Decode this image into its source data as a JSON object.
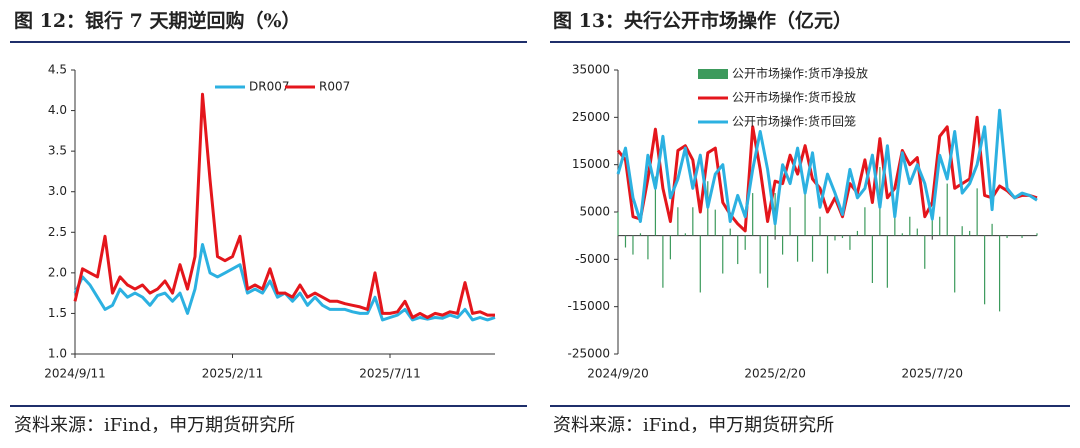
{
  "chart_data": [
    {
      "type": "line",
      "title": "图 12：银行 7 天期逆回购（%）",
      "source": "资料来源：iFind，申万期货研究所",
      "categories": [
        "2024/9/11",
        null,
        null,
        null,
        null,
        null,
        null,
        null,
        null,
        null,
        null,
        null,
        null,
        null,
        null,
        null,
        null,
        null,
        null,
        null,
        null,
        "2025/2/11",
        null,
        null,
        null,
        null,
        null,
        null,
        null,
        null,
        null,
        null,
        null,
        null,
        null,
        null,
        null,
        null,
        null,
        null,
        null,
        null,
        "2025/7/11",
        null,
        null,
        null,
        null,
        null,
        null,
        null,
        null,
        null,
        null,
        null,
        null,
        null,
        null
      ],
      "series": [
        {
          "name": "DR007",
          "color": "#2cb1e1",
          "values": [
            1.75,
            1.95,
            1.85,
            1.7,
            1.55,
            1.6,
            1.8,
            1.7,
            1.75,
            1.7,
            1.6,
            1.72,
            1.75,
            1.65,
            1.75,
            1.5,
            1.8,
            2.35,
            2.0,
            1.95,
            2.0,
            2.05,
            2.1,
            1.75,
            1.8,
            1.75,
            1.9,
            1.7,
            1.75,
            1.65,
            1.75,
            1.6,
            1.7,
            1.6,
            1.55,
            1.55,
            1.55,
            1.52,
            1.5,
            1.5,
            1.7,
            1.42,
            1.45,
            1.48,
            1.55,
            1.42,
            1.45,
            1.43,
            1.45,
            1.44,
            1.48,
            1.45,
            1.55,
            1.42,
            1.45,
            1.42,
            1.45
          ]
        },
        {
          "name": "R007",
          "color": "#e4161c",
          "values": [
            1.65,
            2.05,
            2.0,
            1.95,
            2.45,
            1.75,
            1.95,
            1.85,
            1.8,
            1.85,
            1.75,
            1.8,
            1.9,
            1.75,
            2.1,
            1.8,
            2.2,
            4.2,
            3.15,
            2.2,
            2.15,
            2.2,
            2.45,
            1.8,
            1.85,
            1.8,
            2.05,
            1.75,
            1.75,
            1.7,
            1.85,
            1.7,
            1.75,
            1.7,
            1.65,
            1.65,
            1.62,
            1.6,
            1.58,
            1.55,
            2.0,
            1.5,
            1.5,
            1.52,
            1.65,
            1.45,
            1.5,
            1.45,
            1.5,
            1.48,
            1.52,
            1.5,
            1.88,
            1.5,
            1.52,
            1.48,
            1.48
          ]
        }
      ],
      "ylim": [
        1.0,
        4.5
      ],
      "yticks": [
        {
          "value": 1.0,
          "label": "1.0"
        },
        1.5,
        {
          "value": 2.0,
          "label": "2.0"
        },
        2.5,
        {
          "value": 3.0,
          "label": "3.0"
        },
        3.5,
        {
          "value": 4.0,
          "label": "4.0"
        },
        4.5
      ],
      "grid": false,
      "legend": "upper center"
    },
    {
      "type": "combo",
      "title": "图 13：央行公开市场操作（亿元）",
      "source": "资料来源：iFind，申万期货研究所",
      "categories": [
        "2024/9/20",
        null,
        null,
        null,
        null,
        null,
        null,
        null,
        null,
        null,
        null,
        null,
        null,
        null,
        null,
        null,
        null,
        null,
        null,
        null,
        null,
        "2025/2/20",
        null,
        null,
        null,
        null,
        null,
        null,
        null,
        null,
        null,
        null,
        null,
        null,
        null,
        null,
        null,
        null,
        null,
        null,
        null,
        null,
        "2025/7/20",
        null,
        null,
        null,
        null,
        null,
        null,
        null,
        null,
        null,
        null,
        null,
        null,
        null,
        null
      ],
      "series": [
        {
          "name": "公开市场操作:货币净投放",
          "type": "bar",
          "color": "#3c9a5c",
          "values": [
            5000,
            -2500,
            -4000,
            500,
            -5000,
            12500,
            -11000,
            -5000,
            6000,
            500,
            6000,
            -12000,
            11500,
            5500,
            -8000,
            1500,
            -6000,
            -3000,
            9000,
            -8000,
            -11000,
            9000,
            -4000,
            6000,
            -5500,
            10000,
            -5500,
            4000,
            -8000,
            -1000,
            -500,
            -3000,
            1000,
            6000,
            -10000,
            14500,
            -11000,
            6000,
            500,
            4000,
            1500,
            -7000,
            3500,
            4000,
            11000,
            -12000,
            2000,
            1000,
            10000,
            -14500,
            2500,
            -16000,
            -500,
            0,
            -500,
            0,
            500
          ]
        },
        {
          "name": "公开市场操作:货币投放",
          "type": "line",
          "color": "#e4161c",
          "values": [
            18000,
            16000,
            4000,
            3500,
            12000,
            22500,
            10000,
            3000,
            18000,
            19000,
            16000,
            5000,
            17500,
            18500,
            7000,
            4500,
            2500,
            1000,
            23000,
            14000,
            3000,
            11500,
            11000,
            17000,
            13000,
            19000,
            12000,
            10000,
            5000,
            8000,
            4000,
            11000,
            9000,
            16000,
            7000,
            20500,
            8000,
            10000,
            18000,
            15000,
            16500,
            4000,
            7000,
            21000,
            23000,
            10000,
            11000,
            12000,
            25000,
            8500,
            8000,
            10500,
            9500,
            8000,
            8500,
            8500,
            8000
          ]
        },
        {
          "name": "公开市场操作:货币回笼",
          "type": "line",
          "color": "#2cb1e1",
          "values": [
            13000,
            18500,
            8000,
            3000,
            17000,
            10000,
            21000,
            8000,
            12000,
            18500,
            10000,
            17000,
            6000,
            13000,
            15000,
            3000,
            8500,
            4000,
            14000,
            22000,
            14000,
            2500,
            15000,
            11000,
            18500,
            9000,
            17500,
            6000,
            13000,
            9000,
            4500,
            14000,
            8000,
            10000,
            17000,
            6000,
            19000,
            4000,
            17500,
            11000,
            15000,
            11000,
            3500,
            17000,
            12000,
            22000,
            9000,
            11000,
            15000,
            23000,
            5500,
            26500,
            10000,
            8000,
            9000,
            8500,
            7500
          ]
        }
      ],
      "ylim": [
        -25000,
        35000
      ],
      "yticks": [
        -25000,
        -15000,
        -5000,
        5000,
        15000,
        25000,
        35000
      ],
      "grid": false,
      "legend": "upper left"
    }
  ]
}
